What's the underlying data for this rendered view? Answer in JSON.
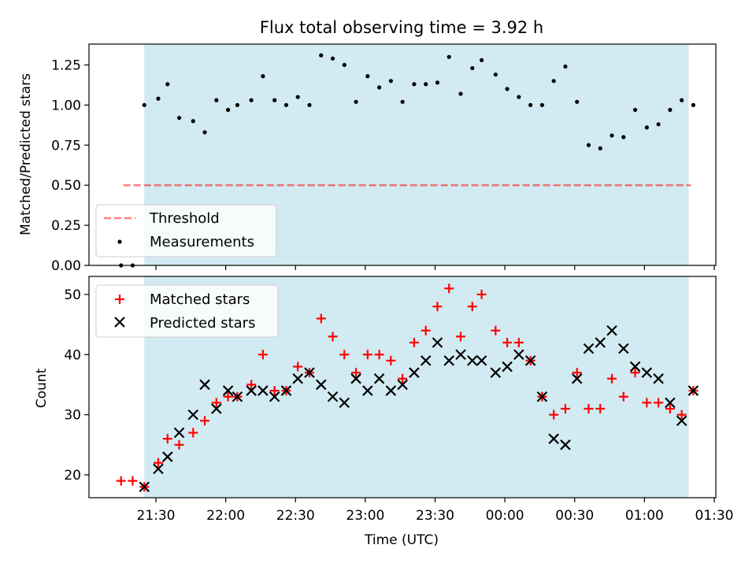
{
  "title": "Flux total observing time = 3.92 h",
  "colors": {
    "shade": "#add8e6",
    "threshold": "#ff0000",
    "measurements": "#000000",
    "matched": "#ff0000",
    "predicted": "#000000"
  },
  "chart_data": [
    {
      "type": "scatter",
      "ylabel": "Matched/Predicted stars",
      "xlabel": "",
      "ylim": [
        0,
        1.38
      ],
      "yticks": [
        "0.00",
        "0.25",
        "0.50",
        "0.75",
        "1.00",
        "1.25"
      ],
      "legend": {
        "placement": "lower-left",
        "entries": [
          "Threshold",
          "Measurements"
        ]
      },
      "threshold": {
        "name": "Threshold",
        "y": 0.5,
        "style": "dashed",
        "x_from": "21:16",
        "x_to": "01:20"
      },
      "shaded_span": {
        "from": "21:25",
        "to": "01:19"
      },
      "series": [
        {
          "name": "Measurements",
          "x": [
            "21:15",
            "21:20",
            "21:25",
            "21:31",
            "21:35",
            "21:40",
            "21:46",
            "21:51",
            "21:56",
            "22:01",
            "22:05",
            "22:11",
            "22:16",
            "22:21",
            "22:26",
            "22:31",
            "22:36",
            "22:41",
            "22:46",
            "22:51",
            "22:56",
            "23:01",
            "23:06",
            "23:11",
            "23:16",
            "23:21",
            "23:26",
            "23:31",
            "23:36",
            "23:41",
            "23:46",
            "23:50",
            "23:56",
            "00:01",
            "00:06",
            "00:11",
            "00:16",
            "00:21",
            "00:26",
            "00:31",
            "00:36",
            "00:41",
            "00:46",
            "00:51",
            "00:56",
            "01:01",
            "01:06",
            "01:11",
            "01:16",
            "01:21"
          ],
          "y": [
            0,
            0,
            1.0,
            1.04,
            1.13,
            0.92,
            0.9,
            0.83,
            1.03,
            0.97,
            1.0,
            1.03,
            1.18,
            1.03,
            1.0,
            1.05,
            1.0,
            1.31,
            1.29,
            1.25,
            1.02,
            1.18,
            1.11,
            1.15,
            1.02,
            1.13,
            1.13,
            1.14,
            1.3,
            1.07,
            1.23,
            1.28,
            1.19,
            1.1,
            1.05,
            1.0,
            1.0,
            1.15,
            1.24,
            1.02,
            0.75,
            0.73,
            0.81,
            0.8,
            0.97,
            0.86,
            0.88,
            0.97,
            1.03,
            1.0
          ]
        }
      ]
    },
    {
      "type": "scatter",
      "ylabel": "Count",
      "xlabel": "Time (UTC)",
      "ylim": [
        16.2,
        53
      ],
      "yticks": [
        "20",
        "30",
        "40",
        "50"
      ],
      "xticks": [
        "21:30",
        "22:00",
        "22:30",
        "23:00",
        "23:30",
        "00:00",
        "00:30",
        "01:00",
        "01:30"
      ],
      "legend": {
        "placement": "upper-left",
        "entries": [
          "Matched stars",
          "Predicted stars"
        ]
      },
      "shaded_span": {
        "from": "21:25",
        "to": "01:19"
      },
      "series": [
        {
          "name": "Matched stars",
          "x": [
            "21:15",
            "21:20",
            "21:25",
            "21:31",
            "21:35",
            "21:40",
            "21:46",
            "21:51",
            "21:56",
            "22:01",
            "22:05",
            "22:11",
            "22:16",
            "22:21",
            "22:26",
            "22:31",
            "22:36",
            "22:41",
            "22:46",
            "22:51",
            "22:56",
            "23:01",
            "23:06",
            "23:11",
            "23:16",
            "23:21",
            "23:26",
            "23:31",
            "23:36",
            "23:41",
            "23:46",
            "23:50",
            "23:56",
            "00:01",
            "00:06",
            "00:11",
            "00:16",
            "00:21",
            "00:26",
            "00:31",
            "00:36",
            "00:41",
            "00:46",
            "00:51",
            "00:56",
            "01:01",
            "01:06",
            "01:11",
            "01:16",
            "01:21"
          ],
          "y": [
            19,
            19,
            18,
            22,
            26,
            25,
            27,
            29,
            32,
            33,
            33,
            35,
            40,
            34,
            34,
            38,
            37,
            46,
            43,
            40,
            37,
            40,
            40,
            39,
            36,
            42,
            44,
            48,
            51,
            43,
            48,
            50,
            44,
            42,
            42,
            39,
            33,
            30,
            31,
            37,
            31,
            31,
            36,
            33,
            37,
            32,
            32,
            31,
            30,
            34
          ]
        },
        {
          "name": "Predicted stars",
          "x": [
            "21:25",
            "21:31",
            "21:35",
            "21:40",
            "21:46",
            "21:51",
            "21:56",
            "22:01",
            "22:05",
            "22:11",
            "22:16",
            "22:21",
            "22:26",
            "22:31",
            "22:36",
            "22:41",
            "22:46",
            "22:51",
            "22:56",
            "23:01",
            "23:06",
            "23:11",
            "23:16",
            "23:21",
            "23:26",
            "23:31",
            "23:36",
            "23:41",
            "23:46",
            "23:50",
            "23:56",
            "00:01",
            "00:06",
            "00:11",
            "00:16",
            "00:21",
            "00:26",
            "00:31",
            "00:36",
            "00:41",
            "00:46",
            "00:51",
            "00:56",
            "01:01",
            "01:06",
            "01:11",
            "01:16",
            "01:21"
          ],
          "y": [
            18,
            21,
            23,
            27,
            30,
            35,
            31,
            34,
            33,
            34,
            34,
            33,
            34,
            36,
            37,
            35,
            33,
            32,
            36,
            34,
            36,
            34,
            35,
            37,
            39,
            42,
            39,
            40,
            39,
            39,
            37,
            38,
            40,
            39,
            33,
            26,
            25,
            36,
            41,
            42,
            44,
            41,
            38,
            37,
            36,
            32,
            29,
            34
          ]
        }
      ]
    }
  ]
}
